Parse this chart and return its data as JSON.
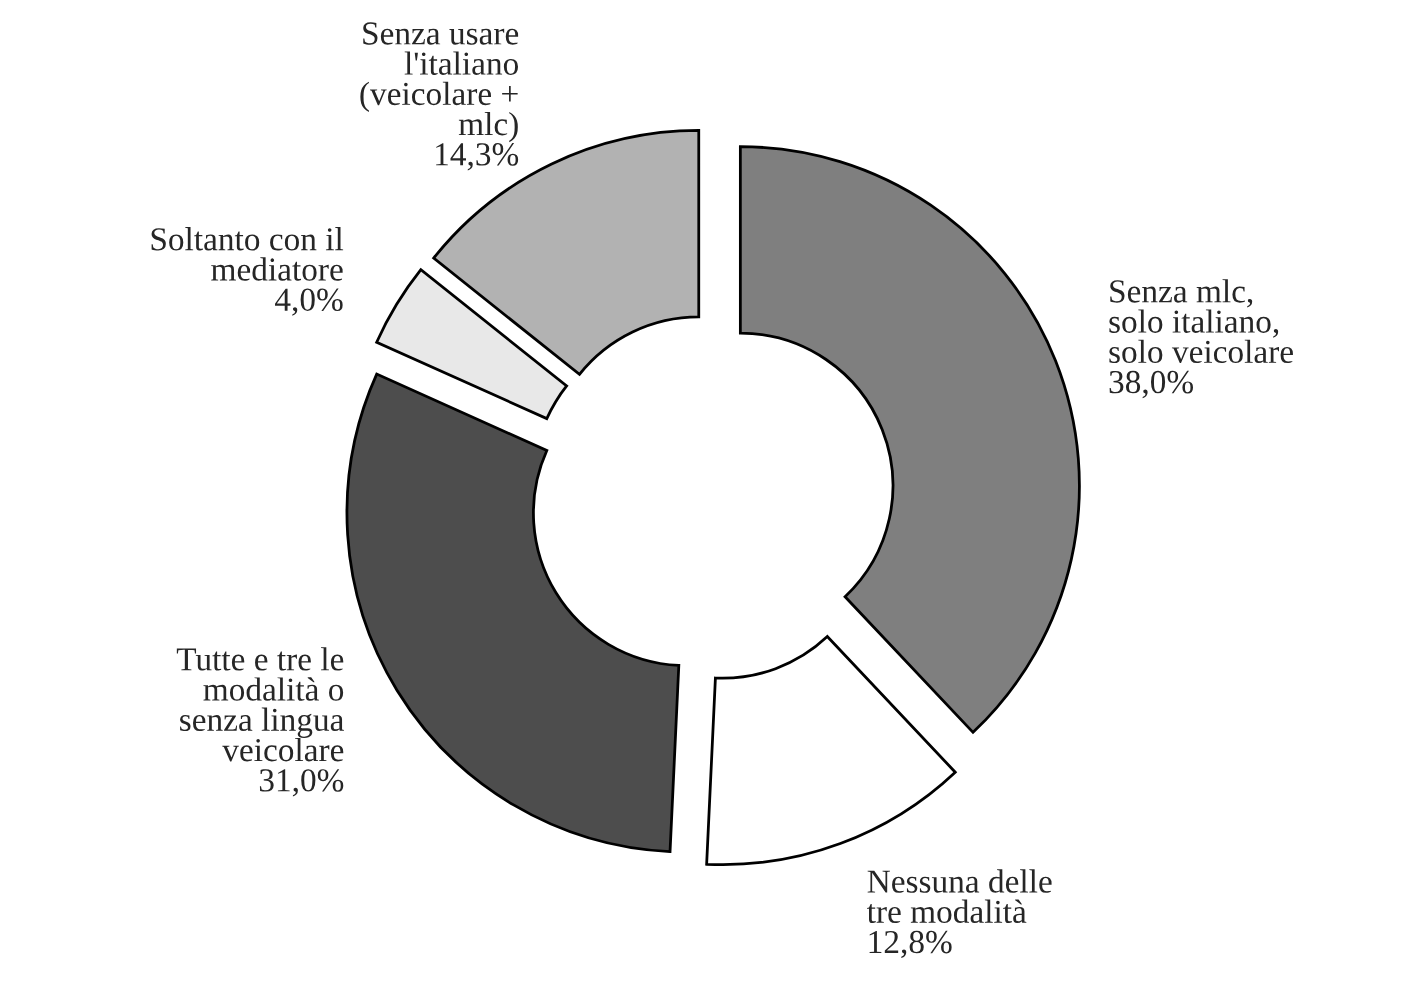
{
  "chart_data": {
    "type": "donut",
    "categories": [
      "Senza mlc,\nsolo italiano,\nsolo veicolare",
      "Nessuna delle\ntre modalità",
      "Tutte e tre le\nmodalità o\nsenza lingua\nveicolare",
      "Soltanto con il\nmediatore",
      "Senza usare\nl'italiano\n(veicolare +\nmlc)"
    ],
    "values": [
      38.0,
      12.8,
      31.0,
      4.0,
      14.3
    ],
    "value_labels": [
      "38,0%",
      "12,8%",
      "31,0%",
      "4,0%",
      "14,3%"
    ],
    "colors": [
      "#7f7f7f",
      "#ffffff",
      "#4d4d4d",
      "#e8e8e8",
      "#b2b2b2"
    ],
    "legend": false
  }
}
